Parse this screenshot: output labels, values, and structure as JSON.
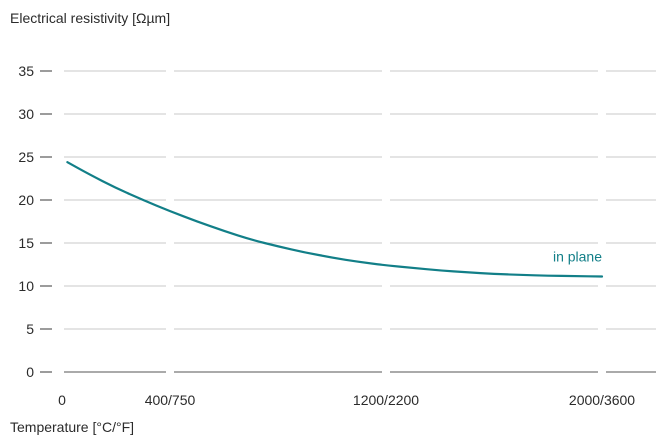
{
  "chart_data": {
    "type": "line",
    "ylabel": "Electrical resistivity [Ωµm]",
    "xlabel": "Temperature [°C/°F]",
    "ylim": [
      0,
      35
    ],
    "xlim": [
      0,
      2000
    ],
    "y_ticks": [
      {
        "value": 0,
        "label": "0"
      },
      {
        "value": 5,
        "label": "5"
      },
      {
        "value": 10,
        "label": "10"
      },
      {
        "value": 15,
        "label": "15"
      },
      {
        "value": 20,
        "label": "20"
      },
      {
        "value": 25,
        "label": "25"
      },
      {
        "value": 30,
        "label": "30"
      },
      {
        "value": 35,
        "label": "35"
      }
    ],
    "x_ticks": [
      {
        "value": 0,
        "label": "0"
      },
      {
        "value": 400,
        "label": "400/750"
      },
      {
        "value": 1200,
        "label": "1200/2200"
      },
      {
        "value": 2000,
        "label": "2000/3600"
      }
    ],
    "grid": true,
    "series": [
      {
        "name": "in plane",
        "color": "#127f88",
        "x": [
          20,
          100,
          200,
          300,
          400,
          500,
          600,
          700,
          800,
          900,
          1000,
          1100,
          1200,
          1300,
          1400,
          1500,
          1600,
          1700,
          1800,
          1900,
          2000
        ],
        "y": [
          24.4,
          23.0,
          21.4,
          20.0,
          18.7,
          17.5,
          16.4,
          15.4,
          14.6,
          13.9,
          13.3,
          12.8,
          12.4,
          12.1,
          11.8,
          11.6,
          11.4,
          11.3,
          11.2,
          11.15,
          11.1
        ]
      }
    ]
  }
}
